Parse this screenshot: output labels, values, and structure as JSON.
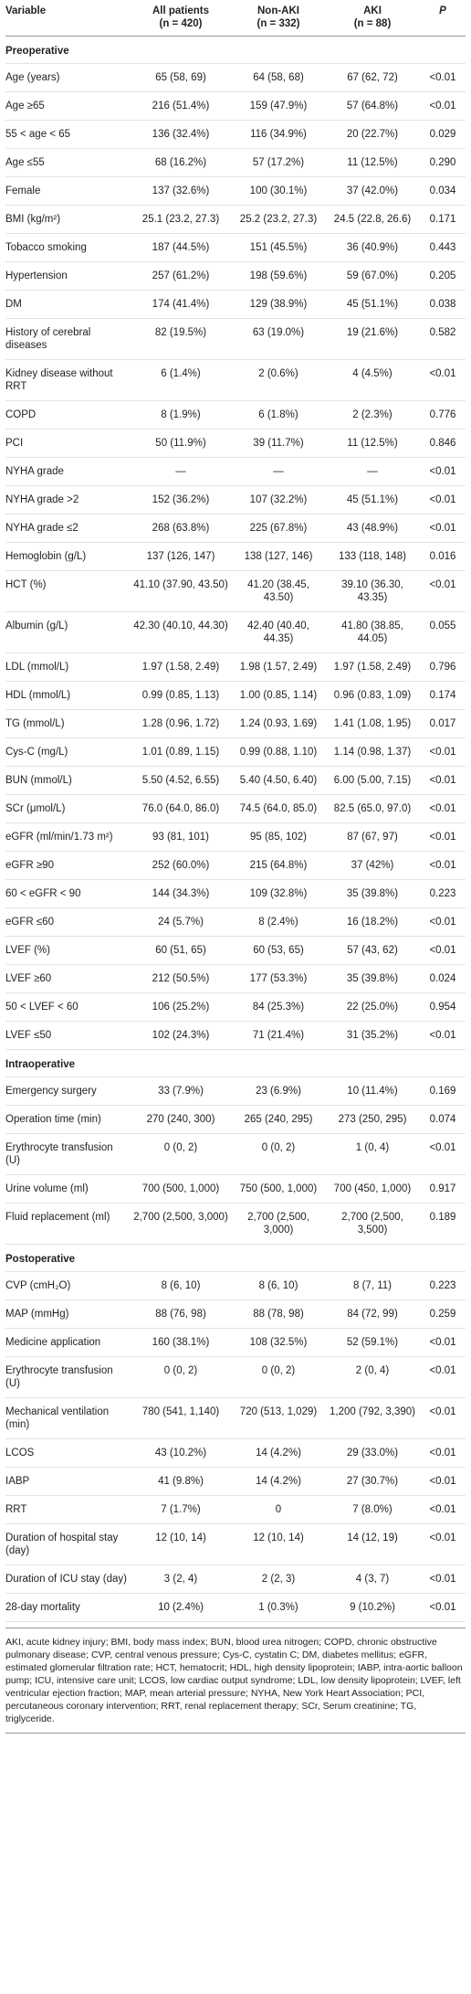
{
  "header": [
    {
      "label": "Variable"
    },
    {
      "label": "All patients",
      "sub": "(n = 420)"
    },
    {
      "label": "Non-AKI",
      "sub": "(n = 332)"
    },
    {
      "label": "AKI",
      "sub": "(n = 88)"
    },
    {
      "label": "P"
    }
  ],
  "sections": [
    {
      "title": "Preoperative",
      "rows": [
        [
          "Age (years)",
          "65 (58, 69)",
          "64 (58, 68)",
          "67 (62, 72)",
          "<0.01"
        ],
        [
          "Age ≥65",
          "216 (51.4%)",
          "159 (47.9%)",
          "57 (64.8%)",
          "<0.01"
        ],
        [
          "55 < age < 65",
          "136 (32.4%)",
          "116 (34.9%)",
          "20 (22.7%)",
          "0.029"
        ],
        [
          "Age ≤55",
          "68 (16.2%)",
          "57 (17.2%)",
          "11 (12.5%)",
          "0.290"
        ],
        [
          "Female",
          "137 (32.6%)",
          "100 (30.1%)",
          "37 (42.0%)",
          "0.034"
        ],
        [
          "BMI (kg/m²)",
          "25.1 (23.2, 27.3)",
          "25.2 (23.2, 27.3)",
          "24.5 (22.8, 26.6)",
          "0.171"
        ],
        [
          "Tobacco smoking",
          "187 (44.5%)",
          "151 (45.5%)",
          "36 (40.9%)",
          "0.443"
        ],
        [
          "Hypertension",
          "257 (61.2%)",
          "198 (59.6%)",
          "59 (67.0%)",
          "0.205"
        ],
        [
          "DM",
          "174 (41.4%)",
          "129 (38.9%)",
          "45 (51.1%)",
          "0.038"
        ],
        [
          "History of cerebral diseases",
          "82 (19.5%)",
          "63 (19.0%)",
          "19 (21.6%)",
          "0.582"
        ],
        [
          "Kidney disease without RRT",
          "6 (1.4%)",
          "2 (0.6%)",
          "4 (4.5%)",
          "<0.01"
        ],
        [
          "COPD",
          "8 (1.9%)",
          "6 (1.8%)",
          "2 (2.3%)",
          "0.776"
        ],
        [
          "PCI",
          "50 (11.9%)",
          "39 (11.7%)",
          "11 (12.5%)",
          "0.846"
        ],
        [
          "NYHA grade",
          "—",
          "—",
          "—",
          "<0.01"
        ],
        [
          "NYHA grade >2",
          "152 (36.2%)",
          "107 (32.2%)",
          "45 (51.1%)",
          "<0.01"
        ],
        [
          "NYHA grade ≤2",
          "268 (63.8%)",
          "225 (67.8%)",
          "43 (48.9%)",
          "<0.01"
        ],
        [
          "Hemoglobin (g/L)",
          "137 (126, 147)",
          "138 (127, 146)",
          "133 (118, 148)",
          "0.016"
        ],
        [
          "HCT (%)",
          "41.10 (37.90, 43.50)",
          "41.20 (38.45, 43.50)",
          "39.10 (36.30, 43.35)",
          "<0.01"
        ],
        [
          "Albumin (g/L)",
          "42.30 (40.10, 44.30)",
          "42.40 (40.40, 44.35)",
          "41.80 (38.85, 44.05)",
          "0.055"
        ],
        [
          "LDL (mmol/L)",
          "1.97 (1.58, 2.49)",
          "1.98 (1.57, 2.49)",
          "1.97 (1.58, 2.49)",
          "0.796"
        ],
        [
          "HDL (mmol/L)",
          "0.99 (0.85, 1.13)",
          "1.00 (0.85, 1.14)",
          "0.96 (0.83, 1.09)",
          "0.174"
        ],
        [
          "TG (mmol/L)",
          "1.28 (0.96, 1.72)",
          "1.24 (0.93, 1.69)",
          "1.41 (1.08, 1.95)",
          "0.017"
        ],
        [
          "Cys-C (mg/L)",
          "1.01 (0.89, 1.15)",
          "0.99 (0.88, 1.10)",
          "1.14 (0.98, 1.37)",
          "<0.01"
        ],
        [
          "BUN (mmol/L)",
          "5.50 (4.52, 6.55)",
          "5.40 (4.50, 6.40)",
          "6.00 (5.00, 7.15)",
          "<0.01"
        ],
        [
          "SCr (μmol/L)",
          "76.0 (64.0, 86.0)",
          "74.5 (64.0, 85.0)",
          "82.5 (65.0, 97.0)",
          "<0.01"
        ],
        [
          "eGFR (ml/min/1.73 m²)",
          "93 (81, 101)",
          "95 (85, 102)",
          "87 (67, 97)",
          "<0.01"
        ],
        [
          "eGFR ≥90",
          "252 (60.0%)",
          "215 (64.8%)",
          "37 (42%)",
          "<0.01"
        ],
        [
          "60 < eGFR < 90",
          "144 (34.3%)",
          "109 (32.8%)",
          "35 (39.8%)",
          "0.223"
        ],
        [
          "eGFR ≤60",
          "24 (5.7%)",
          "8 (2.4%)",
          "16 (18.2%)",
          "<0.01"
        ],
        [
          "LVEF (%)",
          "60 (51, 65)",
          "60 (53, 65)",
          "57 (43, 62)",
          "<0.01"
        ],
        [
          "LVEF ≥60",
          "212 (50.5%)",
          "177 (53.3%)",
          "35 (39.8%)",
          "0.024"
        ],
        [
          "50 < LVEF < 60",
          "106 (25.2%)",
          "84 (25.3%)",
          "22 (25.0%)",
          "0.954"
        ],
        [
          "LVEF ≤50",
          "102 (24.3%)",
          "71 (21.4%)",
          "31 (35.2%)",
          "<0.01"
        ]
      ]
    },
    {
      "title": "Intraoperative",
      "rows": [
        [
          "Emergency surgery",
          "33 (7.9%)",
          "23 (6.9%)",
          "10 (11.4%)",
          "0.169"
        ],
        [
          "Operation time (min)",
          "270 (240, 300)",
          "265 (240, 295)",
          "273 (250, 295)",
          "0.074"
        ],
        [
          "Erythrocyte transfusion (U)",
          "0 (0, 2)",
          "0 (0, 2)",
          "1 (0, 4)",
          "<0.01"
        ],
        [
          "Urine volume (ml)",
          "700 (500, 1,000)",
          "750 (500, 1,000)",
          "700 (450, 1,000)",
          "0.917"
        ],
        [
          "Fluid replacement (ml)",
          "2,700 (2,500, 3,000)",
          "2,700 (2,500, 3,000)",
          "2,700 (2,500, 3,500)",
          "0.189"
        ]
      ]
    },
    {
      "title": "Postoperative",
      "rows": [
        [
          "CVP (cmH₂O)",
          "8 (6, 10)",
          "8 (6, 10)",
          "8 (7, 11)",
          "0.223"
        ],
        [
          "MAP (mmHg)",
          "88 (76, 98)",
          "88 (78, 98)",
          "84 (72, 99)",
          "0.259"
        ],
        [
          "Medicine application",
          "160 (38.1%)",
          "108 (32.5%)",
          "52 (59.1%)",
          "<0.01"
        ],
        [
          "Erythrocyte transfusion (U)",
          "0 (0, 2)",
          "0 (0, 2)",
          "2 (0, 4)",
          "<0.01"
        ],
        [
          "Mechanical ventilation (min)",
          "780 (541, 1,140)",
          "720 (513, 1,029)",
          "1,200 (792, 3,390)",
          "<0.01"
        ],
        [
          "LCOS",
          "43 (10.2%)",
          "14 (4.2%)",
          "29 (33.0%)",
          "<0.01"
        ],
        [
          "IABP",
          "41 (9.8%)",
          "14 (4.2%)",
          "27 (30.7%)",
          "<0.01"
        ],
        [
          "RRT",
          "7 (1.7%)",
          "0",
          "7 (8.0%)",
          "<0.01"
        ],
        [
          "Duration of hospital stay (day)",
          "12 (10, 14)",
          "12 (10, 14)",
          "14 (12, 19)",
          "<0.01"
        ],
        [
          "Duration of ICU stay (day)",
          "3 (2, 4)",
          "2 (2, 3)",
          "4 (3, 7)",
          "<0.01"
        ],
        [
          "28-day mortality",
          "10 (2.4%)",
          "1 (0.3%)",
          "9 (10.2%)",
          "<0.01"
        ]
      ]
    }
  ],
  "footnote": "AKI, acute kidney injury; BMI, body mass index; BUN, blood urea nitrogen; COPD, chronic obstructive pulmonary disease; CVP, central venous pressure; Cys-C, cystatin C; DM, diabetes mellitus; eGFR, estimated glomerular filtration rate; HCT, hematocrit; HDL, high density lipoprotein; IABP, intra-aortic balloon pump; ICU, intensive care unit; LCOS, low cardiac output syndrome; LDL, low density lipoprotein; LVEF, left ventricular ejection fraction; MAP, mean arterial pressure; NYHA, New York Heart Association; PCI, percutaneous coronary intervention; RRT, renal replacement therapy; SCr, Serum creatinine; TG, triglyceride."
}
